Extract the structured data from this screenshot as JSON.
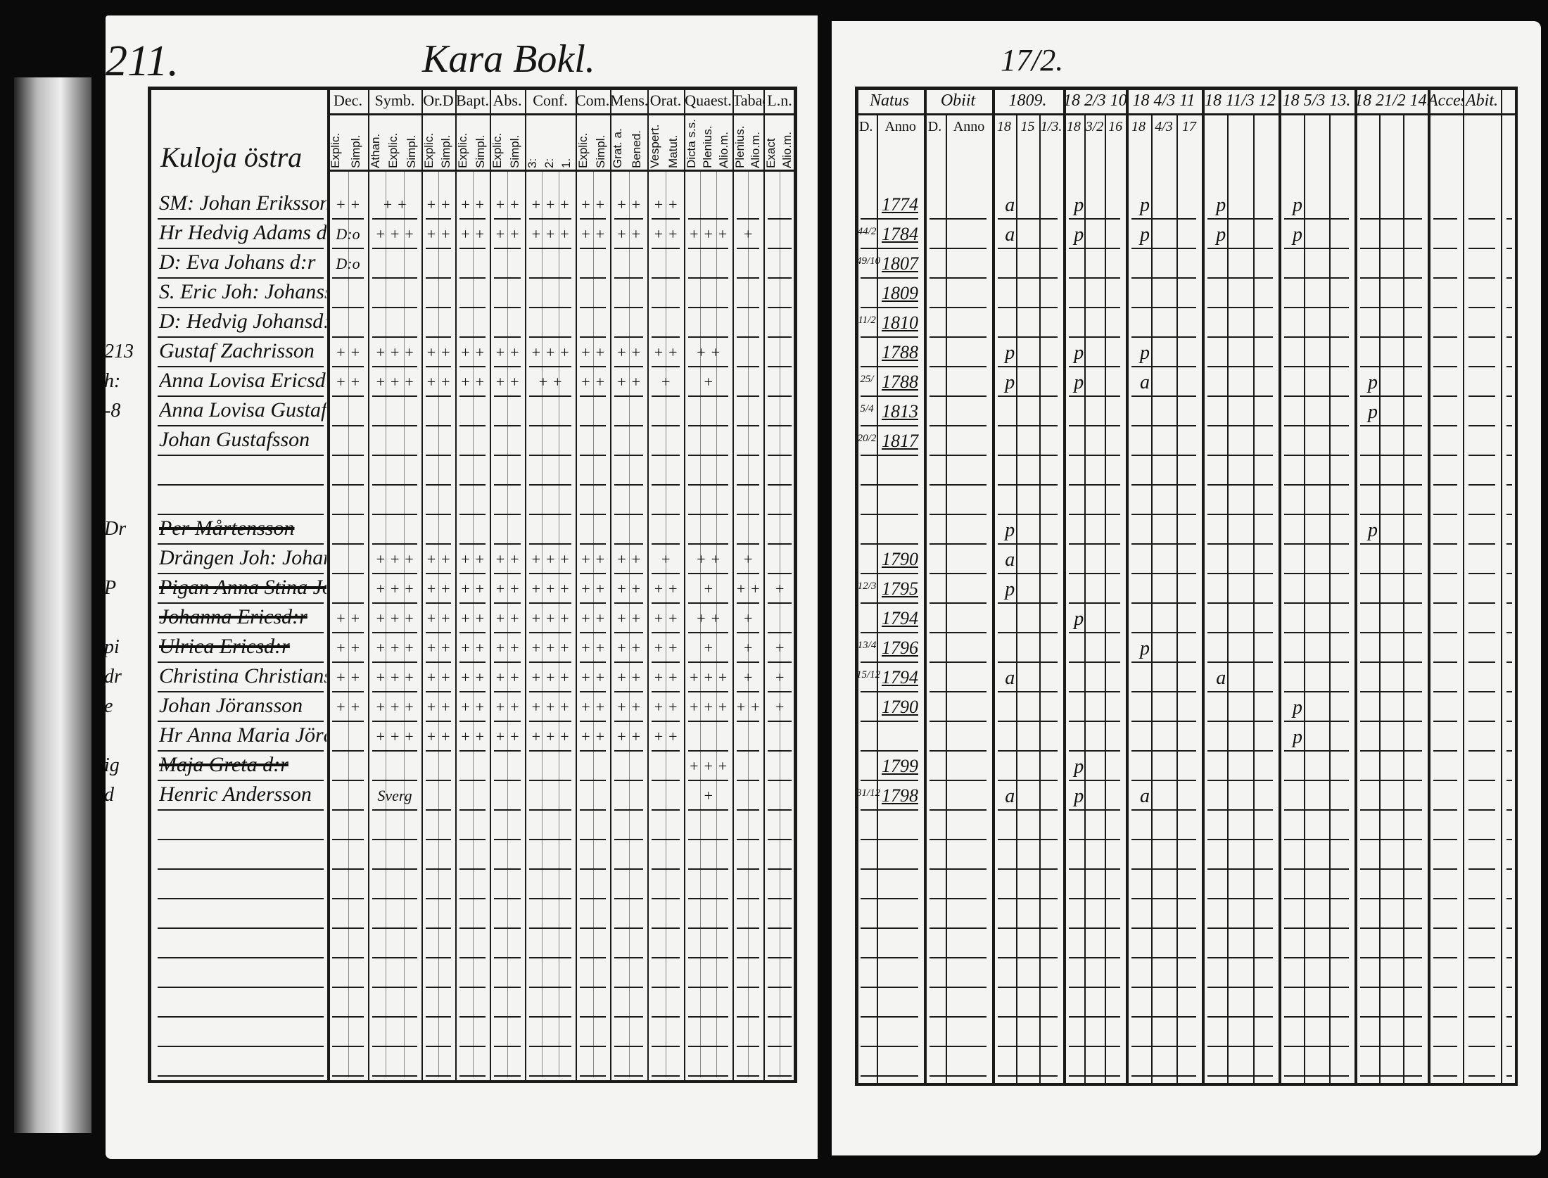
{
  "left_page": {
    "page_number": "211.",
    "title": "Kara Bokl.",
    "village": "Kuloja östra",
    "columns": [
      {
        "label": "Dec.",
        "sub": [
          "Explic.",
          "Simpl."
        ]
      },
      {
        "label": "Symb.",
        "sub": [
          "Athan.",
          "Explic.",
          "Simpl."
        ]
      },
      {
        "label": "Or.D",
        "sub": [
          "Explic.",
          "Simpl."
        ]
      },
      {
        "label": "Bapt.",
        "sub": [
          "Explic.",
          "Simpl."
        ]
      },
      {
        "label": "Abs.",
        "sub": [
          "Explic.",
          "Simpl."
        ]
      },
      {
        "label": "Conf.",
        "sub": [
          "3:",
          "2:",
          "1."
        ]
      },
      {
        "label": "Com.D",
        "sub": [
          "Explic.",
          "Simpl."
        ]
      },
      {
        "label": "Mens.",
        "sub": [
          "Grat. a.",
          "Bened."
        ]
      },
      {
        "label": "Orat.",
        "sub": [
          "Vespert.",
          "Matut."
        ]
      },
      {
        "label": "Quaest.",
        "sub": [
          "Dicta s.s.",
          "Plenius.",
          "Alio.m."
        ]
      },
      {
        "label": "Tabae",
        "sub": [
          "Plenius.",
          "Alio.m."
        ]
      },
      {
        "label": "L.n.",
        "sub": [
          "Exact",
          "Alio.m."
        ]
      }
    ],
    "rows": [
      {
        "name": "SM: Johan Eriksson",
        "marks": [
          "+ +",
          "+ +",
          "+ +",
          "+ +",
          "+ +",
          "+ + +",
          "+ +",
          "+ +",
          "+ +",
          "",
          "",
          ""
        ]
      },
      {
        "name": "Hr Hedvig Adams d:r",
        "marks": [
          "D:o",
          "+ + +",
          "+ +",
          "+ +",
          "+ +",
          "+ + +",
          "+ +",
          "+ +",
          "+ +",
          "+ + +",
          "+",
          ""
        ]
      },
      {
        "name": "D: Eva Johans d:r",
        "marks": [
          "D:o",
          "",
          "",
          "",
          "",
          "",
          "",
          "",
          "",
          "",
          "",
          ""
        ]
      },
      {
        "name": "S. Eric Joh: Johansson",
        "marks": [
          "",
          "",
          "",
          "",
          "",
          "",
          "",
          "",
          "",
          "",
          "",
          ""
        ]
      },
      {
        "name": "D: Hedvig Johansd:r",
        "marks": [
          "",
          "",
          "",
          "",
          "",
          "",
          "",
          "",
          "",
          "",
          "",
          ""
        ]
      },
      {
        "margin": "213",
        "name": "Gustaf Zachrisson",
        "marks": [
          "+ +",
          "+ + +",
          "+ +",
          "+ +",
          "+ +",
          "+ + +",
          "+ +",
          "+ +",
          "+ +",
          "+ +",
          "",
          ""
        ]
      },
      {
        "margin": "h:",
        "name": "Anna Lovisa Ericsd:r",
        "marks": [
          "+ +",
          "+ + +",
          "+ +",
          "+ +",
          "+ +",
          "+ +",
          "+ +",
          "+ +",
          "+",
          "+",
          "",
          ""
        ]
      },
      {
        "margin": "-8",
        "name": "Anna Lovisa Gustafsd:r",
        "marks": [
          "",
          "",
          "",
          "",
          "",
          "",
          "",
          "",
          "",
          "",
          "",
          ""
        ]
      },
      {
        "name": "Johan Gustafsson",
        "marks": [
          "",
          "",
          "",
          "",
          "",
          "",
          "",
          "",
          "",
          "",
          "",
          ""
        ]
      },
      {
        "name": "",
        "marks": []
      },
      {
        "name": "",
        "marks": []
      },
      {
        "margin": "Dr",
        "name": "Per Mårtensson",
        "struck": true,
        "marks": []
      },
      {
        "name": "Drängen Joh: Johansson",
        "marks": [
          "",
          "+ + +",
          "+ +",
          "+ +",
          "+ +",
          "+ + +",
          "+ +",
          "+ +",
          "+",
          "+ +",
          "+",
          ""
        ]
      },
      {
        "margin": "P",
        "name": "Pigan Anna Stina Joh:d:r",
        "struck": true,
        "marks": [
          "",
          "+ + +",
          "+ +",
          "+ +",
          "+ +",
          "+ + +",
          "+ +",
          "+ +",
          "+ +",
          "+",
          "+ +",
          "+"
        ]
      },
      {
        "name": "Johanna Ericsd:r",
        "struck": true,
        "marks": [
          "+ +",
          "+ + +",
          "+ +",
          "+ +",
          "+ +",
          "+ + +",
          "+ +",
          "+ +",
          "+ +",
          "+ +",
          "+",
          ""
        ]
      },
      {
        "margin": "pi",
        "name": "Ulrica Ericsd:r",
        "struck": true,
        "marks": [
          "+ +",
          "+ + +",
          "+ +",
          "+ +",
          "+ +",
          "+ + +",
          "+ +",
          "+ +",
          "+ +",
          "+",
          "+",
          "+"
        ]
      },
      {
        "margin": "dr",
        "name": "Christina Christiansd:r",
        "marks": [
          "+ +",
          "+ + +",
          "+ +",
          "+ +",
          "+ +",
          "+ + +",
          "+ +",
          "+ +",
          "+ +",
          "+ + +",
          "+",
          "+"
        ]
      },
      {
        "margin": "e",
        "name": "Johan Jöransson",
        "marks": [
          "+ +",
          "+ + +",
          "+ +",
          "+ +",
          "+ +",
          "+ + +",
          "+ +",
          "+ +",
          "+ +",
          "+ + +",
          "+ +",
          "+"
        ]
      },
      {
        "name": "Hr Anna Maria Jöransd:r",
        "marks": [
          "",
          "+ + +",
          "+ +",
          "+ +",
          "+ +",
          "+ + +",
          "+ +",
          "+ +",
          "+ +",
          "",
          "",
          ""
        ]
      },
      {
        "margin": "ig",
        "name": "Maja Greta d:r",
        "struck": true,
        "marks": [
          "",
          "",
          "",
          "",
          "",
          "",
          "",
          "",
          "",
          "+ + +",
          "",
          ""
        ]
      },
      {
        "margin": "d",
        "name": "Henric Andersson",
        "marks": [
          "",
          "Sverg",
          "",
          "",
          "",
          "",
          "",
          "",
          "",
          "+",
          "",
          ""
        ]
      }
    ]
  },
  "right_page": {
    "folio": "17/2.",
    "columns": [
      {
        "label": "Natus",
        "sub": [
          "D.",
          "Anno"
        ]
      },
      {
        "label": "Obiit",
        "sub": [
          "D.",
          "Anno"
        ]
      },
      {
        "label": "1809.",
        "sub": [
          "18",
          "15",
          "1/3."
        ]
      },
      {
        "label": "18 2/3 10",
        "sub": [
          "18",
          "3/2",
          "16"
        ]
      },
      {
        "label": "18 4/3 11",
        "sub": [
          "18",
          "4/3",
          "17"
        ]
      },
      {
        "label": "18 11/3 12",
        "sub": [
          "",
          "",
          ""
        ]
      },
      {
        "label": "18 5/3 13.",
        "sub": [
          "",
          "",
          ""
        ]
      },
      {
        "label": "18 21/2 14.",
        "sub": [
          "",
          "",
          ""
        ]
      },
      {
        "label": "Acces.",
        "sub": []
      },
      {
        "label": "Abit.",
        "sub": []
      }
    ],
    "rows": [
      {
        "d": "",
        "anno": "1774",
        "years": [
          "a",
          "p",
          "p",
          "p",
          "p",
          ""
        ]
      },
      {
        "d": "44/2",
        "anno": "1784",
        "years": [
          "a",
          "p",
          "p",
          "p",
          "p",
          ""
        ]
      },
      {
        "d": "49/10",
        "anno": "1807",
        "years": [
          "",
          "",
          "",
          "",
          "",
          ""
        ]
      },
      {
        "d": "",
        "anno": "1809",
        "years": [
          "",
          "",
          "",
          "",
          "",
          ""
        ]
      },
      {
        "d": "11/2",
        "anno": "1810",
        "years": [
          "",
          "",
          "",
          "",
          "",
          ""
        ]
      },
      {
        "d": "",
        "anno": "1788",
        "years": [
          "p",
          "p",
          "p",
          "",
          "",
          ""
        ]
      },
      {
        "d": "25/",
        "anno": "1788",
        "years": [
          "p",
          "p",
          "a",
          "",
          "",
          "p"
        ]
      },
      {
        "d": "5/4",
        "anno": "1813",
        "years": [
          "",
          "",
          "",
          "",
          "",
          "p"
        ]
      },
      {
        "d": "20/2",
        "anno": "1817",
        "years": [
          "",
          "",
          "",
          "",
          "",
          ""
        ]
      },
      {
        "d": "",
        "anno": "",
        "years": []
      },
      {
        "d": "",
        "anno": "",
        "years": []
      },
      {
        "d": "",
        "anno": "",
        "years": [
          "p",
          "",
          "",
          "",
          "",
          "p"
        ]
      },
      {
        "d": "",
        "anno": "1790",
        "years": [
          "a",
          "",
          "",
          "",
          "",
          ""
        ]
      },
      {
        "d": "12/3",
        "anno": "1795",
        "years": [
          "p",
          "",
          "",
          "",
          "",
          ""
        ]
      },
      {
        "d": "",
        "anno": "1794",
        "years": [
          "",
          "p",
          "",
          "",
          "",
          ""
        ]
      },
      {
        "d": "13/4",
        "anno": "1796",
        "years": [
          "",
          "",
          "p",
          "",
          "",
          ""
        ]
      },
      {
        "d": "15/12",
        "anno": "1794",
        "years": [
          "a",
          "",
          "",
          "a",
          "",
          ""
        ]
      },
      {
        "d": "",
        "anno": "1790",
        "years": [
          "",
          "",
          "",
          "",
          "p",
          ""
        ]
      },
      {
        "d": "",
        "anno": "",
        "years": [
          "",
          "",
          "",
          "",
          "p",
          ""
        ]
      },
      {
        "d": "",
        "anno": "1799",
        "years": [
          "",
          "p",
          "",
          "",
          "",
          ""
        ]
      },
      {
        "d": "31/12",
        "anno": "1798",
        "years": [
          "a",
          "p",
          "a",
          "",
          "",
          ""
        ]
      }
    ]
  },
  "colors": {
    "paper": "#f4f4f2",
    "ink": "#111111",
    "background": "#0a0a0a"
  }
}
